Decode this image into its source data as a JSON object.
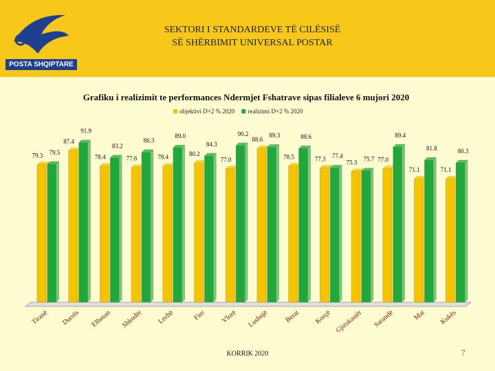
{
  "header": {
    "logo_text": "POSTA SHQIPTARE",
    "title_lines": [
      "SEKTORI I STANDARDEVE TË CILËSISË",
      "SË SHËRBIMIT UNIVERSAL POSTAR"
    ]
  },
  "chart_data": {
    "type": "bar",
    "title": "Grafiku i realizimit te performances Ndermjet Fshatrave sipas filialeve 6 mujori 2020",
    "categories": [
      "Tiranë",
      "Durrës",
      "Elbasan",
      "Shkodër",
      "Lezhë",
      "Fier",
      "Vlorë",
      "Lushnjë",
      "Berat",
      "Korçë",
      "Gjirokastër",
      "Sarandë",
      "Mat",
      "Kukës"
    ],
    "series": [
      {
        "name": "objektivi D+2 % 2020",
        "color": "#f5c400",
        "values": [
          79.3,
          87.4,
          78.4,
          77.6,
          78.4,
          80.2,
          77.0,
          88.6,
          78.5,
          77.3,
          75.3,
          77.0,
          71.1,
          71.1
        ],
        "value_labels": [
          "79.3",
          "87.4",
          "78.4",
          "77.6",
          "78.4",
          "80.2",
          "77.0",
          "88.6",
          "78.5",
          "77.3",
          "75.3",
          "77.0",
          "71.1",
          "71.1"
        ]
      },
      {
        "name": "realizimi D+2 % 2020",
        "color": "#22a83a",
        "values": [
          79.5,
          91.9,
          83.2,
          86.3,
          89.0,
          84.3,
          90.2,
          89.3,
          88.6,
          77.4,
          75.7,
          89.4,
          81.8,
          80.3
        ],
        "value_labels": [
          "79.5",
          "91.9",
          "83.2",
          "86.3",
          "89.0",
          "84.3",
          "90.2",
          "89.3",
          "88.6",
          "77.4",
          "75.7",
          "89.4",
          "81.8",
          "80.3"
        ]
      }
    ],
    "legend": "top"
  },
  "footer": {
    "date": "KORRIK 2020",
    "page": "7"
  }
}
